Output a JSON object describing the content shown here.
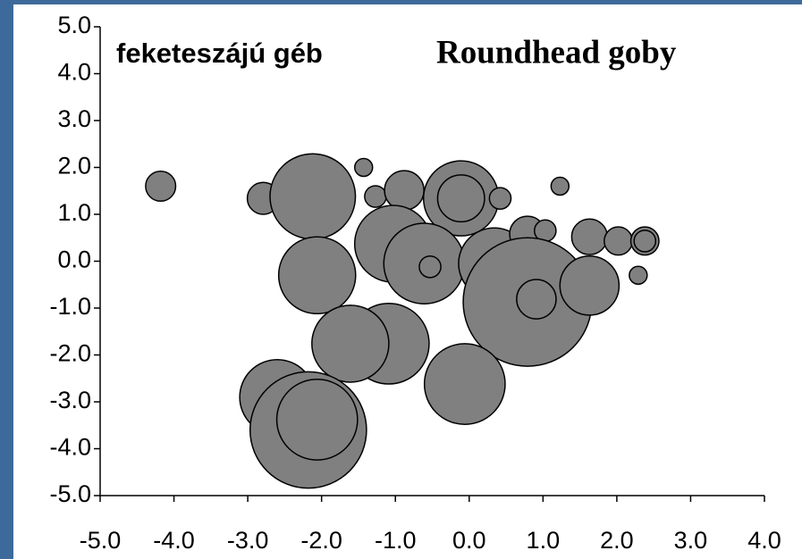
{
  "chart_data": {
    "type": "scatter",
    "title": "feketeszájú géb",
    "subtitle": "Roundhead goby",
    "color": "#808080",
    "xlim": [
      -5,
      4
    ],
    "ylim": [
      -5,
      5
    ],
    "xticks": [
      {
        "value": -5,
        "label": "-5.0"
      },
      {
        "value": -4,
        "label": "-4.0"
      },
      {
        "value": -3,
        "label": "-3.0"
      },
      {
        "value": -2,
        "label": "-2.0"
      },
      {
        "value": -1,
        "label": "-1.0"
      },
      {
        "value": 0,
        "label": "0.0"
      },
      {
        "value": 1,
        "label": "1.0"
      },
      {
        "value": 2,
        "label": "2.0"
      },
      {
        "value": 3,
        "label": "3.0"
      },
      {
        "value": 4,
        "label": "4.0"
      }
    ],
    "yticks": [
      {
        "value": 5,
        "label": "5.0"
      },
      {
        "value": 4,
        "label": "4.0"
      },
      {
        "value": 3,
        "label": "3.0"
      },
      {
        "value": 2,
        "label": "2.0"
      },
      {
        "value": 1,
        "label": "1.0"
      },
      {
        "value": 0,
        "label": "0.0"
      },
      {
        "value": -1,
        "label": "-1.0"
      },
      {
        "value": -2,
        "label": "-2.0"
      },
      {
        "value": -3,
        "label": "-3.0"
      },
      {
        "value": -4,
        "label": "-4.0"
      },
      {
        "value": -5,
        "label": "-5.0"
      }
    ],
    "x": [
      -4.18,
      -2.79,
      -2.12,
      -1.43,
      -1.27,
      -0.88,
      -0.11,
      -0.11,
      0.42,
      1.23,
      -1.03,
      -0.61,
      0.34,
      -0.53,
      -2.06,
      0.79,
      1.03,
      1.63,
      2.02,
      2.38,
      2.38,
      2.29,
      0.79,
      0.91,
      1.63,
      -1.09,
      -1.61,
      -0.06,
      -2.6,
      -2.18,
      -2.06
    ],
    "y": [
      1.6,
      1.34,
      1.38,
      2.0,
      1.38,
      1.51,
      1.34,
      1.34,
      1.34,
      1.6,
      0.37,
      -0.05,
      -0.05,
      -0.12,
      -0.3,
      0.58,
      0.65,
      0.52,
      0.43,
      0.43,
      0.43,
      -0.3,
      -0.87,
      -0.81,
      -0.52,
      -1.76,
      -1.76,
      -2.62,
      -2.9,
      -3.6,
      -3.38
    ],
    "sizes": [
      0.32,
      0.34,
      0.91,
      0.19,
      0.23,
      0.42,
      0.8,
      0.5,
      0.23,
      0.19,
      0.82,
      0.86,
      0.76,
      0.23,
      0.82,
      0.38,
      0.23,
      0.38,
      0.3,
      0.3,
      0.23,
      0.19,
      1.37,
      0.42,
      0.63,
      0.86,
      0.82,
      0.86,
      0.8,
      1.24,
      0.86
    ]
  }
}
